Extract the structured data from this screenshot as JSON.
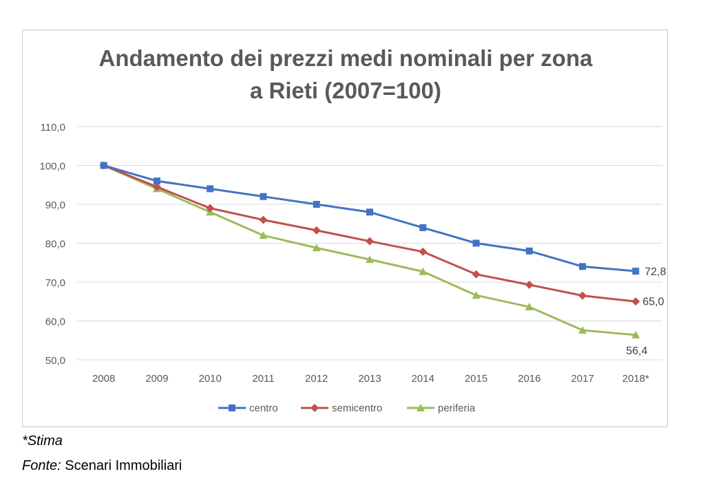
{
  "chart_data": {
    "type": "line",
    "title_lines": [
      "Andamento dei prezzi medi nominali per zona",
      "a Rieti (2007=100)"
    ],
    "categories": [
      "2008",
      "2009",
      "2010",
      "2011",
      "2012",
      "2013",
      "2014",
      "2015",
      "2016",
      "2017",
      "2018*"
    ],
    "ylim": [
      50,
      110
    ],
    "yticks": [
      "50,0",
      "60,0",
      "70,0",
      "80,0",
      "90,0",
      "100,0",
      "110,0"
    ],
    "grid": true,
    "legend_position": "bottom",
    "series": [
      {
        "name": "centro",
        "color": "#4472C4",
        "marker": "square",
        "values": [
          100,
          96,
          94,
          92,
          90,
          88,
          84,
          80,
          78,
          74,
          72.8
        ],
        "end_label": "72,8"
      },
      {
        "name": "semicentro",
        "color": "#C0504D",
        "marker": "diamond",
        "values": [
          100,
          94.5,
          89,
          86,
          83.3,
          80.5,
          77.8,
          72,
          69.3,
          66.5,
          65.0
        ],
        "end_label": "65,0"
      },
      {
        "name": "periferia",
        "color": "#9BBB59",
        "marker": "triangle",
        "values": [
          100,
          94,
          88,
          82,
          78.8,
          75.8,
          72.7,
          66.6,
          63.6,
          57.6,
          56.4
        ],
        "end_label": "56,4"
      }
    ]
  },
  "notes": {
    "stima": "*Stima",
    "source_label": "Fonte:",
    "source_value": " Scenari Immobiliari"
  }
}
